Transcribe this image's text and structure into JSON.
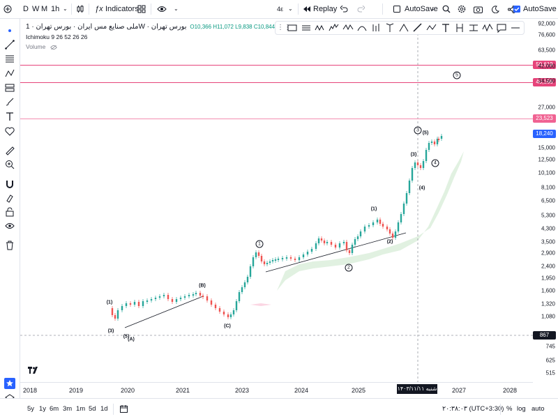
{
  "toolbar": {
    "timeframes": [
      "D",
      "W",
      "M",
      "1h"
    ],
    "indicators_label": "Indicators",
    "layout_label": "4ε",
    "replay_label": "Replay",
    "autosave_label": "AutoSave",
    "autosave_checkbox_label": "AutoSave"
  },
  "legend": {
    "symbol_title": "ملی صنایع مس ایران · بورس تهران · 1W · بورس تهران",
    "ohlc": "O10,366 H11,072 L9,838 C10,844",
    "indicator_line": "Ichimoku 9 26 52 26 26",
    "volume_label": "Volume"
  },
  "price_axis": {
    "labels": [
      "92,000",
      "76,600",
      "63,500",
      "42,000",
      "34,500",
      "27,000",
      "18,240",
      "15,000",
      "12,500",
      "10,100",
      "8,100",
      "6,500",
      "5,300",
      "4,300",
      "3,500",
      "2,900",
      "2,400",
      "1,950",
      "1,600",
      "1,320",
      "1,080",
      "867",
      "745",
      "625",
      "515"
    ],
    "line_badges": [
      "50,619",
      "40,166",
      "23,523"
    ],
    "last_price": "18,240",
    "crosshair_price": "867",
    "line_color": "#e6447a",
    "last_price_color": "#2962ff"
  },
  "time_axis": {
    "labels": [
      "2018",
      "2019",
      "2020",
      "2021",
      "2023",
      "2024",
      "2025",
      "2027",
      "2028"
    ],
    "crosshair_date": "شنبه ۱۴۰۳/۱۱/۱۱"
  },
  "wave_labels": {
    "minor": [
      "(1)",
      "(3)",
      "(5)",
      "(A)",
      "(B)",
      "(C)",
      "(1)",
      "(2)",
      "(3)",
      "(4)",
      "(5)"
    ],
    "circled": [
      "1",
      "2",
      "3",
      "4",
      "5"
    ]
  },
  "bottom_bar": {
    "ranges": [
      "5y",
      "1y",
      "6m",
      "3m",
      "1m",
      "5d",
      "1d"
    ],
    "time_display": "۲۰:۳۸:۰۳ (UTC+3:30)",
    "toggles": [
      "%",
      "log",
      "auto"
    ]
  },
  "colors": {
    "up_candle": "#26a69a",
    "down_candle": "#ef5350",
    "cloud": "#c8e6c9",
    "trendline": "#131722"
  }
}
